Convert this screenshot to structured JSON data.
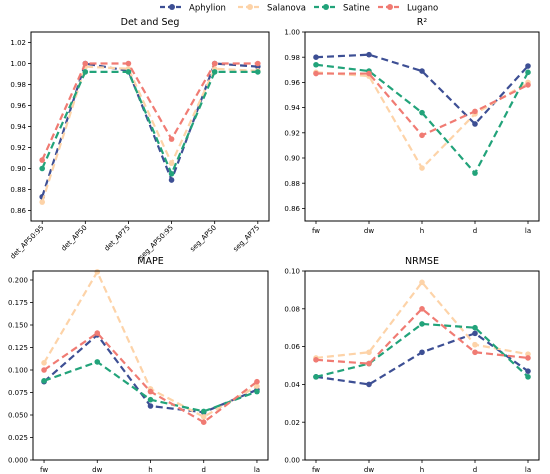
{
  "legend": {
    "placement": "top-center",
    "entries": [
      {
        "name": "Aphylion",
        "color": "#3d4f94",
        "marker": "circle"
      },
      {
        "name": "Salanova",
        "color": "#fdd3a8",
        "marker": "circle"
      },
      {
        "name": "Satine",
        "color": "#22a37a",
        "marker": "circle"
      },
      {
        "name": "Lugano",
        "color": "#f07b73",
        "marker": "circle"
      }
    ]
  },
  "chart_data": [
    {
      "type": "line",
      "title": "Det and Seg",
      "xlabel": "",
      "ylabel": "",
      "categories": [
        "det_AP50:95",
        "det_AP50",
        "det_AP75",
        "seg_AP50:95",
        "seg_AP50",
        "seg_AP75"
      ],
      "ylim": [
        0.85,
        1.03
      ],
      "yticks": [
        0.86,
        0.88,
        0.9,
        0.92,
        0.94,
        0.96,
        0.98,
        1.0,
        1.02
      ],
      "ytick_labels": [
        "0.86",
        "0.88",
        "0.90",
        "0.92",
        "0.94",
        "0.96",
        "0.98",
        "1.00",
        "1.02"
      ],
      "grid": false,
      "series": [
        {
          "name": "Aphylion",
          "values": [
            0.873,
            1.0,
            0.993,
            0.889,
            1.0,
            0.997
          ]
        },
        {
          "name": "Salanova",
          "values": [
            0.868,
            0.997,
            0.995,
            0.905,
            0.995,
            0.993
          ]
        },
        {
          "name": "Satine",
          "values": [
            0.9,
            0.992,
            0.992,
            0.895,
            0.992,
            0.992
          ]
        },
        {
          "name": "Lugano",
          "values": [
            0.908,
            1.0,
            1.0,
            0.928,
            1.0,
            1.0
          ]
        }
      ]
    },
    {
      "type": "line",
      "title": "R²",
      "xlabel": "",
      "ylabel": "",
      "categories": [
        "fw",
        "dw",
        "h",
        "d",
        "la"
      ],
      "ylim": [
        0.85,
        1.0
      ],
      "yticks": [
        0.86,
        0.88,
        0.9,
        0.92,
        0.94,
        0.96,
        0.98,
        1.0
      ],
      "ytick_labels": [
        "0.86",
        "0.88",
        "0.90",
        "0.92",
        "0.94",
        "0.96",
        "0.98",
        "1.00"
      ],
      "grid": false,
      "series": [
        {
          "name": "Aphylion",
          "values": [
            0.98,
            0.982,
            0.969,
            0.927,
            0.973
          ]
        },
        {
          "name": "Salanova",
          "values": [
            0.968,
            0.965,
            0.892,
            0.935,
            0.96
          ]
        },
        {
          "name": "Satine",
          "values": [
            0.974,
            0.969,
            0.936,
            0.888,
            0.968
          ]
        },
        {
          "name": "Lugano",
          "values": [
            0.967,
            0.967,
            0.918,
            0.937,
            0.958
          ]
        }
      ]
    },
    {
      "type": "line",
      "title": "MAPE",
      "xlabel": "",
      "ylabel": "",
      "categories": [
        "fw",
        "dw",
        "h",
        "d",
        "la"
      ],
      "ylim": [
        0.0,
        0.21
      ],
      "yticks": [
        0.0,
        0.025,
        0.05,
        0.075,
        0.1,
        0.125,
        0.15,
        0.175,
        0.2
      ],
      "ytick_labels": [
        "0.000",
        "0.025",
        "0.050",
        "0.075",
        "0.100",
        "0.125",
        "0.150",
        "0.175",
        "0.200"
      ],
      "grid": false,
      "series": [
        {
          "name": "Aphylion",
          "values": [
            0.087,
            0.139,
            0.06,
            0.053,
            0.078
          ]
        },
        {
          "name": "Salanova",
          "values": [
            0.108,
            0.209,
            0.079,
            0.048,
            0.082
          ]
        },
        {
          "name": "Satine",
          "values": [
            0.088,
            0.109,
            0.067,
            0.054,
            0.076
          ]
        },
        {
          "name": "Lugano",
          "values": [
            0.1,
            0.141,
            0.076,
            0.042,
            0.087
          ]
        }
      ]
    },
    {
      "type": "line",
      "title": "NRMSE",
      "xlabel": "",
      "ylabel": "",
      "categories": [
        "fw",
        "dw",
        "h",
        "d",
        "la"
      ],
      "ylim": [
        0.0,
        0.1
      ],
      "yticks": [
        0.0,
        0.02,
        0.04,
        0.06,
        0.08,
        0.1
      ],
      "ytick_labels": [
        "0.00",
        "0.02",
        "0.04",
        "0.06",
        "0.08",
        "0.10"
      ],
      "grid": false,
      "series": [
        {
          "name": "Aphylion",
          "values": [
            0.044,
            0.04,
            0.057,
            0.067,
            0.047
          ]
        },
        {
          "name": "Salanova",
          "values": [
            0.054,
            0.057,
            0.094,
            0.061,
            0.056
          ]
        },
        {
          "name": "Satine",
          "values": [
            0.044,
            0.051,
            0.072,
            0.07,
            0.044
          ]
        },
        {
          "name": "Lugano",
          "values": [
            0.053,
            0.051,
            0.08,
            0.057,
            0.054
          ]
        }
      ]
    }
  ]
}
